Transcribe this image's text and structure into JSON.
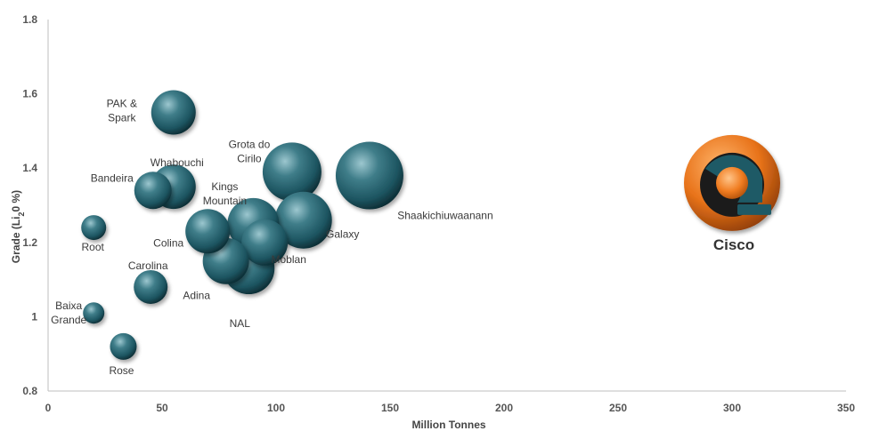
{
  "chart_data": {
    "type": "scatter",
    "title": "",
    "xlabel": "Million Tonnes",
    "ylabel_parts": [
      "Grade (Li",
      "2",
      "0 %)"
    ],
    "xlim": [
      0,
      350
    ],
    "ylim": [
      0.8,
      1.8
    ],
    "xticks": [
      0,
      50,
      100,
      150,
      200,
      250,
      300,
      350
    ],
    "yticks": [
      0.8,
      1,
      1.2,
      1.4,
      1.6,
      1.8
    ],
    "ytick_labels": [
      "0.8",
      "1",
      "1.2",
      "1.4",
      "1.6",
      "1.8"
    ],
    "grid": false,
    "bubble_color": "#1e5a66",
    "points": [
      {
        "label": [
          "PAK &",
          "Spark"
        ],
        "x": 55,
        "y": 1.55,
        "size": 25
      },
      {
        "label": [
          "Whabouchi"
        ],
        "x": 55,
        "y": 1.35,
        "size": 25
      },
      {
        "label": [
          "Bandeira"
        ],
        "x": 46,
        "y": 1.34,
        "size": 21
      },
      {
        "label": [
          "Grota do",
          "Cirilo"
        ],
        "x": 107,
        "y": 1.39,
        "size": 33
      },
      {
        "label": [
          "Shaakichiuwaanann"
        ],
        "x": 141,
        "y": 1.38,
        "size": 38
      },
      {
        "label": [
          "Kings",
          "Mountain"
        ],
        "x": 90,
        "y": 1.25,
        "size": 29
      },
      {
        "label": [
          "Galaxy"
        ],
        "x": 112,
        "y": 1.26,
        "size": 32
      },
      {
        "label": [
          "Moblan"
        ],
        "x": 95,
        "y": 1.2,
        "size": 26
      },
      {
        "label": [
          "Colina"
        ],
        "x": 70,
        "y": 1.23,
        "size": 25
      },
      {
        "label": [
          "Root"
        ],
        "x": 20,
        "y": 1.24,
        "size": 14
      },
      {
        "label": [
          "NAL"
        ],
        "x": 88,
        "y": 1.13,
        "size": 29
      },
      {
        "label": [
          "Adina"
        ],
        "x": 78,
        "y": 1.15,
        "size": 26
      },
      {
        "label": [
          "Carolina"
        ],
        "x": 45,
        "y": 1.08,
        "size": 19
      },
      {
        "label": [
          "Baixa",
          "Grande"
        ],
        "x": 20,
        "y": 1.01,
        "size": 12
      },
      {
        "label": [
          "Rose"
        ],
        "x": 33,
        "y": 0.92,
        "size": 15
      }
    ]
  },
  "cisco": {
    "name": "Cisco",
    "x": 300,
    "y": 1.36,
    "colors": {
      "orange": "#e8731a",
      "teal": "#1e5a66",
      "dark": "#222222"
    }
  }
}
